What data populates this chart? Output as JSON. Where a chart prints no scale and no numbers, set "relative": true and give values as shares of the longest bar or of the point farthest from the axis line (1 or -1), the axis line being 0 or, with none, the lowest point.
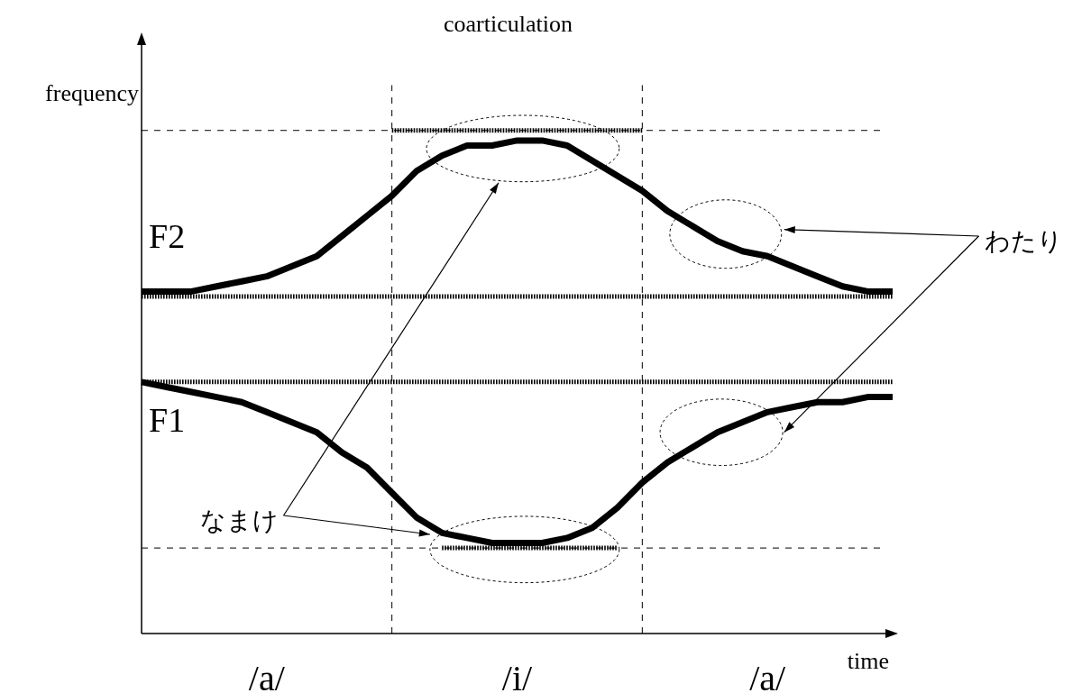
{
  "chart_data": {
    "type": "line",
    "title": "coarticulation",
    "xlabel": "time",
    "ylabel": "frequency",
    "relative": true,
    "legend": false,
    "marker": "none",
    "categories": [
      null,
      null,
      null,
      null,
      null,
      "/a/",
      null,
      null,
      null,
      null,
      null,
      null,
      null,
      null,
      null,
      "/i/",
      null,
      null,
      null,
      null,
      null,
      null,
      null,
      null,
      null,
      "/a/",
      null,
      null,
      null,
      null,
      null
    ],
    "series": [
      {
        "name": "F2",
        "color": "#000000",
        "values": [
          0.68,
          0.68,
          0.68,
          0.69,
          0.7,
          0.71,
          0.73,
          0.75,
          0.79,
          0.83,
          0.87,
          0.92,
          0.95,
          0.97,
          0.97,
          0.98,
          0.98,
          0.97,
          0.94,
          0.91,
          0.88,
          0.84,
          0.81,
          0.78,
          0.76,
          0.75,
          0.73,
          0.71,
          0.69,
          0.68,
          0.68
        ]
      },
      {
        "name": "F1",
        "color": "#000000",
        "values": [
          0.5,
          0.49,
          0.48,
          0.47,
          0.46,
          0.44,
          0.42,
          0.4,
          0.36,
          0.33,
          0.28,
          0.23,
          0.2,
          0.19,
          0.18,
          0.18,
          0.18,
          0.19,
          0.21,
          0.25,
          0.3,
          0.34,
          0.37,
          0.4,
          0.42,
          0.44,
          0.45,
          0.46,
          0.46,
          0.47,
          0.47
        ]
      },
      {
        "color": "#000000",
        "line_style": "dotted",
        "values": [
          0.67,
          0.67,
          0.67,
          0.67,
          0.67,
          0.67,
          0.67,
          0.67,
          0.67,
          0.67,
          0.67,
          null,
          null,
          null,
          null,
          null,
          null,
          null,
          null,
          null,
          0.67,
          0.67,
          0.67,
          0.67,
          0.67,
          0.67,
          0.67,
          0.67,
          0.67,
          0.67,
          0.67
        ]
      },
      {
        "color": "#000000",
        "line_style": "dotted",
        "values": [
          null,
          null,
          null,
          null,
          null,
          null,
          null,
          null,
          null,
          null,
          1,
          1,
          1,
          1,
          1,
          1,
          1,
          1,
          1,
          1,
          1,
          null,
          null,
          null,
          null,
          null,
          null,
          null,
          null,
          null,
          null
        ]
      },
      {
        "color": "#000000",
        "line_style": "dotted",
        "values": [
          0.5,
          0.5,
          0.5,
          0.5,
          0.5,
          0.5,
          0.5,
          0.5,
          0.5,
          0.5,
          0.5,
          null,
          null,
          null,
          null,
          null,
          null,
          null,
          null,
          null,
          0.5,
          0.5,
          0.5,
          0.5,
          0.5,
          0.5,
          0.5,
          0.5,
          0.5,
          0.5,
          0.5
        ]
      },
      {
        "color": "#000000",
        "line_style": "dotted",
        "values": [
          null,
          null,
          null,
          null,
          null,
          null,
          null,
          null,
          null,
          null,
          null,
          null,
          0.17,
          0.17,
          0.17,
          0.17,
          0.17,
          0.17,
          0.17,
          0.17,
          null,
          null,
          null,
          null,
          null,
          null,
          null,
          null,
          null,
          null,
          null
        ]
      }
    ],
    "ref_lines": [
      {
        "axis": "y",
        "value": 1,
        "line_style": "dashed"
      },
      {
        "axis": "y",
        "value": 0.17,
        "line_style": "dashed"
      }
    ],
    "annotations": [
      "なまけ",
      "わたり"
    ]
  }
}
